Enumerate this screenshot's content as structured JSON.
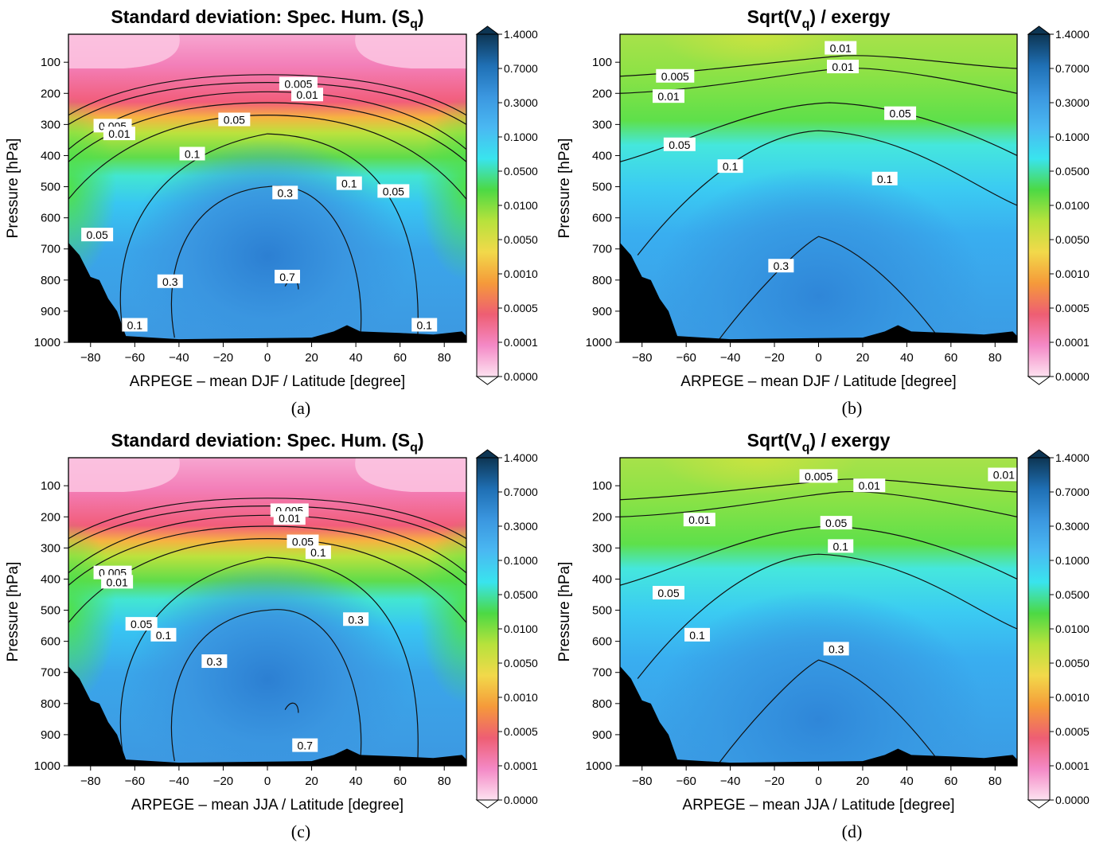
{
  "figure": {
    "colorbar_ticks": [
      "1.4000",
      "0.7000",
      "0.3000",
      "0.1000",
      "0.0500",
      "0.0100",
      "0.0050",
      "0.0010",
      "0.0005",
      "0.0001",
      "0.0000"
    ],
    "colorbar_colors": [
      "#0d3553",
      "#1f6fb4",
      "#3b97e0",
      "#4ab8f2",
      "#39e4ee",
      "#4cd944",
      "#b7e23c",
      "#f2d94a",
      "#f59a3a",
      "#ee5e73",
      "#f489c6",
      "#fde2f0"
    ]
  },
  "chart_data": [
    {
      "id": "a",
      "type": "heatmap",
      "title_main": "Standard deviation: Spec. Hum. (S",
      "title_sub": "q",
      "title_end": ")",
      "xlabel": "ARPEGE – mean DJF / Latitude [degree]",
      "ylabel": "Pressure [hPa]",
      "xlim": [
        -90,
        90
      ],
      "ylim": [
        1000,
        10
      ],
      "xticks": [
        -80,
        -60,
        -40,
        -20,
        0,
        20,
        40,
        60,
        80
      ],
      "yticks": [
        100,
        200,
        300,
        400,
        500,
        600,
        700,
        800,
        900,
        1000
      ],
      "caption": "(a)",
      "contour_labels": [
        {
          "text": "0.005",
          "lat": 14,
          "p": 170
        },
        {
          "text": "0.01",
          "lat": 18,
          "p": 205
        },
        {
          "text": "0.005",
          "lat": -70,
          "p": 305
        },
        {
          "text": "0.01",
          "lat": -67,
          "p": 330
        },
        {
          "text": "0.05",
          "lat": -15,
          "p": 285
        },
        {
          "text": "0.1",
          "lat": -34,
          "p": 395
        },
        {
          "text": "0.3",
          "lat": 8,
          "p": 520
        },
        {
          "text": "0.1",
          "lat": 37,
          "p": 490
        },
        {
          "text": "0.05",
          "lat": 57,
          "p": 515
        },
        {
          "text": "0.05",
          "lat": -77,
          "p": 655
        },
        {
          "text": "0.3",
          "lat": -44,
          "p": 805
        },
        {
          "text": "0.7",
          "lat": 9,
          "p": 790
        },
        {
          "text": "0.1",
          "lat": -60,
          "p": 945
        },
        {
          "text": "0.1",
          "lat": 71,
          "p": 945
        }
      ]
    },
    {
      "id": "b",
      "type": "heatmap",
      "title_main": "Sqrt(V",
      "title_sub": "q",
      "title_end": ") / exergy",
      "xlabel": "ARPEGE – mean DJF / Latitude [degree]",
      "ylabel": "Pressure [hPa]",
      "xlim": [
        -90,
        90
      ],
      "ylim": [
        1000,
        10
      ],
      "xticks": [
        -80,
        -60,
        -40,
        -20,
        0,
        20,
        40,
        60,
        80
      ],
      "yticks": [
        100,
        200,
        300,
        400,
        500,
        600,
        700,
        800,
        900,
        1000
      ],
      "caption": "(b)",
      "contour_labels": [
        {
          "text": "0.01",
          "lat": 10,
          "p": 55
        },
        {
          "text": "0.005",
          "lat": -65,
          "p": 145
        },
        {
          "text": "0.01",
          "lat": 11,
          "p": 115
        },
        {
          "text": "0.01",
          "lat": -68,
          "p": 210
        },
        {
          "text": "0.05",
          "lat": 37,
          "p": 265
        },
        {
          "text": "0.05",
          "lat": -63,
          "p": 365
        },
        {
          "text": "0.1",
          "lat": -40,
          "p": 435
        },
        {
          "text": "0.1",
          "lat": 30,
          "p": 475
        },
        {
          "text": "0.3",
          "lat": -17,
          "p": 755
        }
      ]
    },
    {
      "id": "c",
      "type": "heatmap",
      "title_main": "Standard deviation: Spec. Hum. (S",
      "title_sub": "q",
      "title_end": ")",
      "xlabel": "ARPEGE – mean JJA / Latitude [degree]",
      "ylabel": "Pressure [hPa]",
      "xlim": [
        -90,
        90
      ],
      "ylim": [
        1000,
        10
      ],
      "xticks": [
        -80,
        -60,
        -40,
        -20,
        0,
        20,
        40,
        60,
        80
      ],
      "yticks": [
        100,
        200,
        300,
        400,
        500,
        600,
        700,
        800,
        900,
        1000
      ],
      "caption": "(c)",
      "contour_labels": [
        {
          "text": "0.005",
          "lat": 10,
          "p": 180
        },
        {
          "text": "0.01",
          "lat": 10,
          "p": 205
        },
        {
          "text": "0.005",
          "lat": -70,
          "p": 380
        },
        {
          "text": "0.01",
          "lat": -68,
          "p": 410
        },
        {
          "text": "0.05",
          "lat": 16,
          "p": 280
        },
        {
          "text": "0.1",
          "lat": 23,
          "p": 315
        },
        {
          "text": "0.05",
          "lat": -57,
          "p": 545
        },
        {
          "text": "0.1",
          "lat": -47,
          "p": 580
        },
        {
          "text": "0.3",
          "lat": 40,
          "p": 530
        },
        {
          "text": "0.3",
          "lat": -24,
          "p": 665
        },
        {
          "text": "0.7",
          "lat": 17,
          "p": 935
        }
      ]
    },
    {
      "id": "d",
      "type": "heatmap",
      "title_main": "Sqrt(V",
      "title_sub": "q",
      "title_end": ") / exergy",
      "xlabel": "ARPEGE – mean JJA / Latitude [degree]",
      "ylabel": "Pressure [hPa]",
      "xlim": [
        -90,
        90
      ],
      "ylim": [
        1000,
        10
      ],
      "xticks": [
        -80,
        -60,
        -40,
        -20,
        0,
        20,
        40,
        60,
        80
      ],
      "yticks": [
        100,
        200,
        300,
        400,
        500,
        600,
        700,
        800,
        900,
        1000
      ],
      "caption": "(d)",
      "contour_labels": [
        {
          "text": "0.005",
          "lat": 0,
          "p": 70
        },
        {
          "text": "0.01",
          "lat": 23,
          "p": 100
        },
        {
          "text": "0.01",
          "lat": -54,
          "p": 210
        },
        {
          "text": "0.05",
          "lat": 8,
          "p": 220
        },
        {
          "text": "0.1",
          "lat": 10,
          "p": 295
        },
        {
          "text": "0.05",
          "lat": -68,
          "p": 445
        },
        {
          "text": "0.1",
          "lat": -55,
          "p": 580
        },
        {
          "text": "0.3",
          "lat": 8,
          "p": 625
        },
        {
          "text": "0.01",
          "lat": 84,
          "p": 65
        }
      ]
    }
  ]
}
